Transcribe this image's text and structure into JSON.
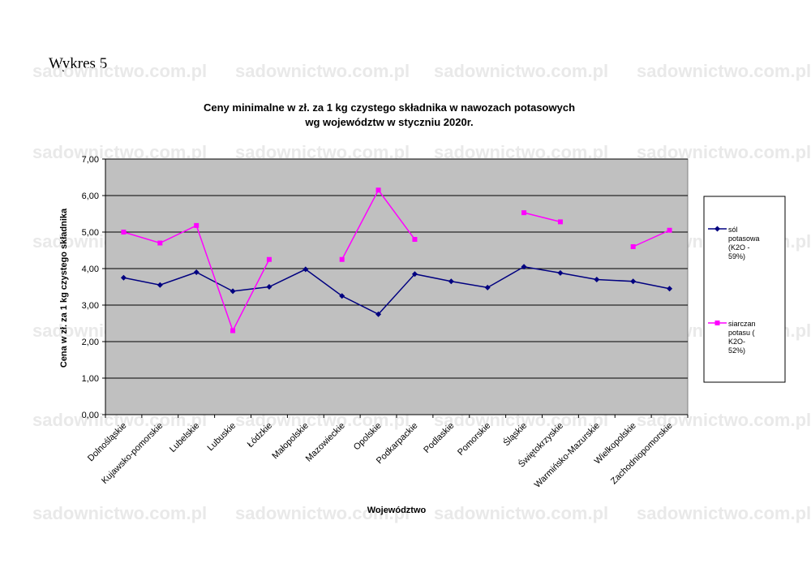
{
  "page": {
    "heading": "Wykres 5",
    "watermark": "sadownictwo.com.pl"
  },
  "chart_data": {
    "type": "line",
    "title_line1": "Ceny minimalne  w zł. za 1 kg czystego składnika w nawozach potasowych",
    "title_line2": "wg województw w styczniu 2020r.",
    "xlabel": "Województwo",
    "ylabel": "Cena w zł. za 1 kg czystego składnika",
    "ylim": [
      0,
      7
    ],
    "ytick_step": 1,
    "ytick_labels": [
      "0,00",
      "1,00",
      "2,00",
      "3,00",
      "4,00",
      "5,00",
      "6,00",
      "7,00"
    ],
    "grid": true,
    "legend_position": "right",
    "categories": [
      "Dolnośląskie",
      "Kujawsko-pomorskie",
      "Lubelskie",
      "Lubuskie",
      "Łódzkie",
      "Małopolskie",
      "Mazowieckie",
      "Opolskie",
      "Podkarpackie",
      "Podlaskie",
      "Pomorskie",
      "Śląskie",
      "Świętokrzyskie",
      "Warmińsko-Mazurskie",
      "Wielkopolskie",
      "Zachodniopomorskie"
    ],
    "series": [
      {
        "name_lines": [
          "sól",
          "potasowa",
          "(K2O -",
          "59%)"
        ],
        "color": "#000080",
        "marker": "diamond",
        "values": [
          3.75,
          3.55,
          3.9,
          3.38,
          3.5,
          3.98,
          3.25,
          2.75,
          3.85,
          3.65,
          3.48,
          4.05,
          3.88,
          3.7,
          3.65,
          3.45
        ]
      },
      {
        "name_lines": [
          "siarczan",
          "potasu (",
          "K2O-",
          "52%)"
        ],
        "color": "#ff00ff",
        "marker": "square",
        "values": [
          5.0,
          4.7,
          5.18,
          2.3,
          4.25,
          null,
          4.25,
          6.15,
          4.8,
          null,
          null,
          5.53,
          5.28,
          null,
          4.6,
          5.05
        ]
      }
    ]
  }
}
